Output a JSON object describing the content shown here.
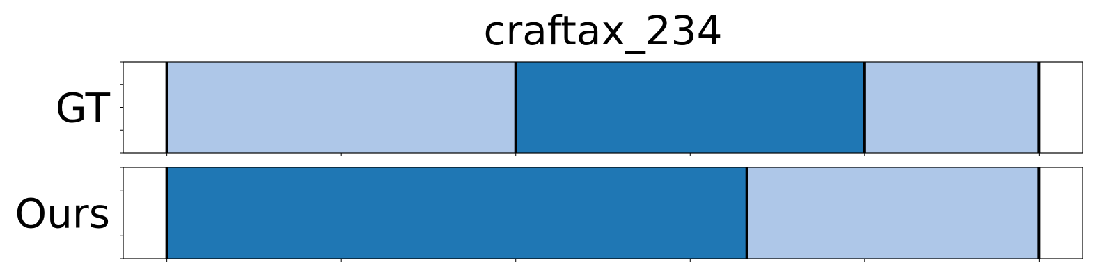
{
  "chart_data": {
    "type": "bar",
    "title": "craftax_234",
    "xlim": [
      0,
      11
    ],
    "x_ticks": [
      0.5,
      2.5,
      4.5,
      6.5,
      8.5,
      10.5
    ],
    "y_ticks_per_row": 5,
    "rows": [
      {
        "label": "GT",
        "segments": [
          {
            "start": 0.5,
            "end": 4.5,
            "color": "#aec7e8"
          },
          {
            "start": 4.5,
            "end": 8.5,
            "color": "#1f77b4"
          },
          {
            "start": 8.5,
            "end": 10.5,
            "color": "#aec7e8"
          }
        ],
        "boundaries": [
          0.5,
          4.5,
          8.5,
          10.5
        ]
      },
      {
        "label": "Ours",
        "segments": [
          {
            "start": 0.5,
            "end": 7.15,
            "color": "#1f77b4"
          },
          {
            "start": 7.15,
            "end": 10.5,
            "color": "#aec7e8"
          }
        ],
        "boundaries": [
          0.5,
          7.15,
          10.5
        ]
      }
    ],
    "grid": false,
    "legend": "none"
  }
}
